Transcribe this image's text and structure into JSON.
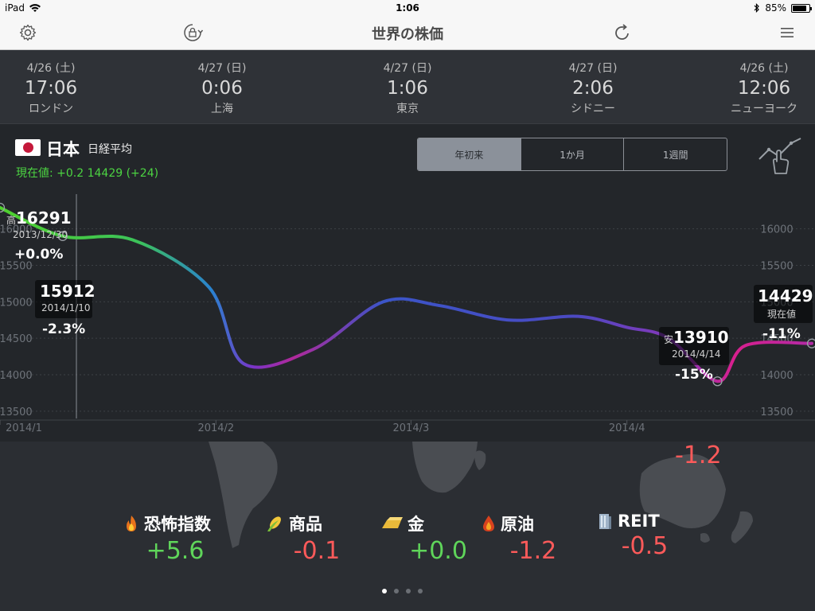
{
  "statusbar": {
    "device": "iPad",
    "time": "1:06",
    "battery": "85%",
    "battery_level": 0.85
  },
  "navbar": {
    "title": "世界の株価",
    "icons": [
      "gear-icon",
      "rotation-lock-icon",
      "refresh-icon",
      "menu-icon"
    ]
  },
  "clocks": [
    {
      "date": "4/26 (土)",
      "time": "17:06",
      "city": "ロンドン"
    },
    {
      "date": "4/27 (日)",
      "time": "0:06",
      "city": "上海"
    },
    {
      "date": "4/27 (日)",
      "time": "1:06",
      "city": "東京"
    },
    {
      "date": "4/27 (日)",
      "time": "2:06",
      "city": "シドニー"
    },
    {
      "date": "4/26 (土)",
      "time": "12:06",
      "city": "ニューヨーク"
    }
  ],
  "market": {
    "country": "日本",
    "index": "日経平均",
    "current": "現在値: +0.2 14429 (+24)"
  },
  "ranges": {
    "options": [
      "年初来",
      "1か月",
      "1週間"
    ],
    "selected": "年初来"
  },
  "chart_data": {
    "type": "line",
    "x": [
      "2014/1/1",
      "2014/1/10",
      "2014/1/20",
      "2014/1/31",
      "2014/2/5",
      "2014/2/15",
      "2014/2/25",
      "2014/3/5",
      "2014/3/15",
      "2014/3/25",
      "2014/4/1",
      "2014/4/7",
      "2014/4/14",
      "2014/4/18",
      "2014/4/25"
    ],
    "y": [
      16291,
      15900,
      15850,
      15200,
      14150,
      14350,
      15000,
      14950,
      14750,
      14800,
      14650,
      14500,
      13910,
      14400,
      14429
    ],
    "ylim": [
      13400,
      16400
    ],
    "yticks": [
      13500,
      14000,
      14500,
      15000,
      15500,
      16000
    ],
    "xticks": [
      "2014/1",
      "2014/2",
      "2014/3",
      "2014/4"
    ],
    "grid": true,
    "annotations": {
      "high": {
        "prefix": "高",
        "value": "16291",
        "date": "2013/12/30",
        "pct": "+0.0%"
      },
      "cursor": {
        "value": "15912",
        "date": "2014/1/10",
        "pct": "-2.3%"
      },
      "low": {
        "prefix": "安",
        "value": "13910",
        "date": "2014/4/14",
        "pct": "-15%"
      },
      "current": {
        "value": "14429",
        "label": "現在値",
        "pct": "-11%"
      }
    }
  },
  "indicators": [
    {
      "icon": "fire-icon",
      "label": "恐怖指数",
      "value": "+5.6",
      "color": "green"
    },
    {
      "icon": "corn-icon",
      "label": "商品",
      "value": "-0.1",
      "color": "red"
    },
    {
      "icon": "gold-bar-icon",
      "label": "金",
      "value": "+0.0",
      "color": "green"
    },
    {
      "icon": "oil-drop-icon",
      "label": "原油",
      "value": "-1.2",
      "color": "red"
    },
    {
      "icon": "building-icon",
      "label": "REIT",
      "value": "-0.5",
      "color": "red"
    }
  ],
  "map_value": "-1.2",
  "pages": {
    "count": 4,
    "current": 1
  }
}
